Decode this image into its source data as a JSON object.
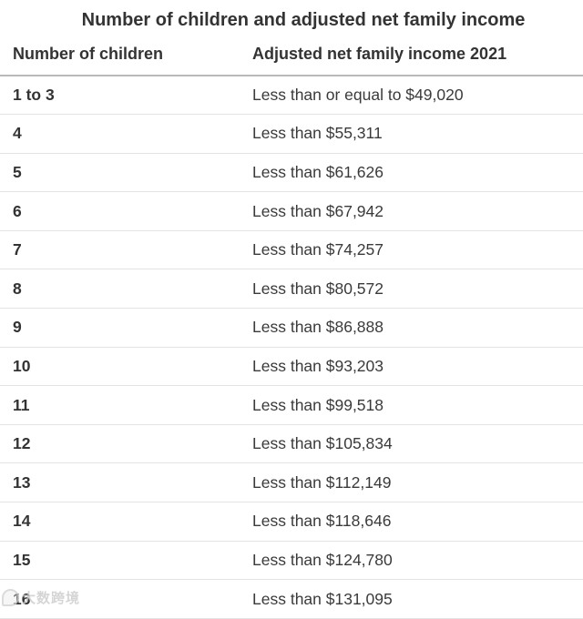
{
  "chart_data": {
    "type": "table",
    "title": "Number of children and adjusted net family income",
    "columns": [
      "Number of children",
      "Adjusted net family income 2021"
    ],
    "rows": [
      [
        "1 to 3",
        "Less than or equal to $49,020"
      ],
      [
        "4",
        "Less than $55,311"
      ],
      [
        "5",
        "Less than $61,626"
      ],
      [
        "6",
        "Less than $67,942"
      ],
      [
        "7",
        "Less than $74,257"
      ],
      [
        "8",
        "Less than $80,572"
      ],
      [
        "9",
        "Less than $86,888"
      ],
      [
        "10",
        "Less than $93,203"
      ],
      [
        "11",
        "Less than $99,518"
      ],
      [
        "12",
        "Less than $105,834"
      ],
      [
        "13",
        "Less than $112,149"
      ],
      [
        "14",
        "Less than $118,646"
      ],
      [
        "15",
        "Less than $124,780"
      ],
      [
        "16",
        "Less than $131,095"
      ]
    ],
    "layout": {
      "grid": "horizontal-row-separators",
      "legend": "none"
    }
  },
  "watermark": {
    "text": "大数跨境"
  },
  "colors": {
    "background": "#ffffff",
    "text": "#333333",
    "header_border": "#b9b9b9",
    "row_border": "#e4e4e4",
    "watermark": "#c3c3c3"
  }
}
